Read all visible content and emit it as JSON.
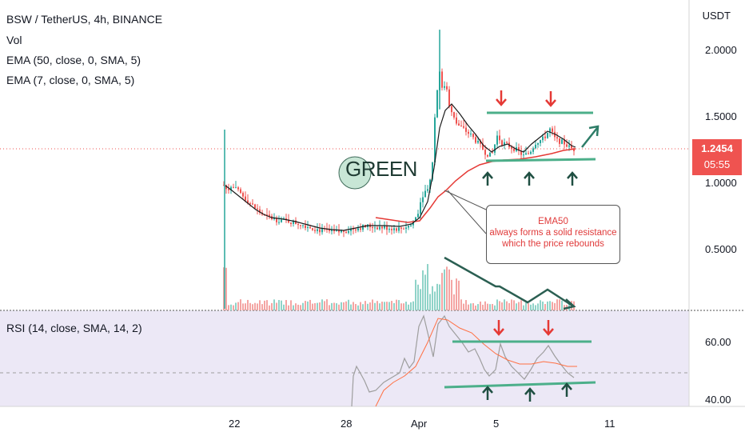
{
  "header": {
    "symbol_line": "BSW / TetherUS, 4h, BINANCE",
    "vol_label": "Vol",
    "ema50_label": "EMA (50, close, 0, SMA, 5)",
    "ema7_label": "EMA (7, close, 0, SMA, 5)",
    "currency": "USDT"
  },
  "price_axis": {
    "ticks": [
      "2.0000",
      "1.5000",
      "1.0000",
      "0.5000"
    ],
    "last_price": "1.2454",
    "countdown": "05:55"
  },
  "rsi": {
    "legend": "RSI (14, close, SMA, 14, 2)",
    "ticks": [
      "60.00",
      "40.00"
    ]
  },
  "time_axis": {
    "labels": [
      "22",
      "28",
      "Apr",
      "5",
      "11"
    ]
  },
  "annotations": {
    "green_label": "GREEN",
    "ema50_note_title": "EMA50",
    "ema50_note_line1": "always forms a solid resistance",
    "ema50_note_line2": "which the price rebounds"
  },
  "colors": {
    "up": "#26a69a",
    "down": "#ef5350",
    "ema50": "#e53935",
    "ema7": "#1b1b1b",
    "drawing": "#4caf8a",
    "rsi_line": "#9e9e9e",
    "rsi_ma": "#ff7043",
    "rsi_bg": "#ece8f6"
  },
  "chart_data": {
    "type": "candlestick",
    "title": "BSW / TetherUS, 4h, BINANCE",
    "y_unit": "USDT",
    "ylim": [
      0.2,
      2.3
    ],
    "x_labels": [
      "22",
      "28",
      "Apr",
      "5",
      "11"
    ],
    "key_points": [
      {
        "x": "22",
        "close": 0.95
      },
      {
        "x": "28",
        "close": 0.62
      },
      {
        "x": "Apr",
        "close": 0.95
      },
      {
        "x": "Apr 2",
        "high": 2.15
      },
      {
        "x": "5",
        "close": 1.3
      },
      {
        "x": "last",
        "close": 1.2454
      }
    ],
    "rsi_ticks": [
      60,
      40
    ],
    "grid": true
  }
}
